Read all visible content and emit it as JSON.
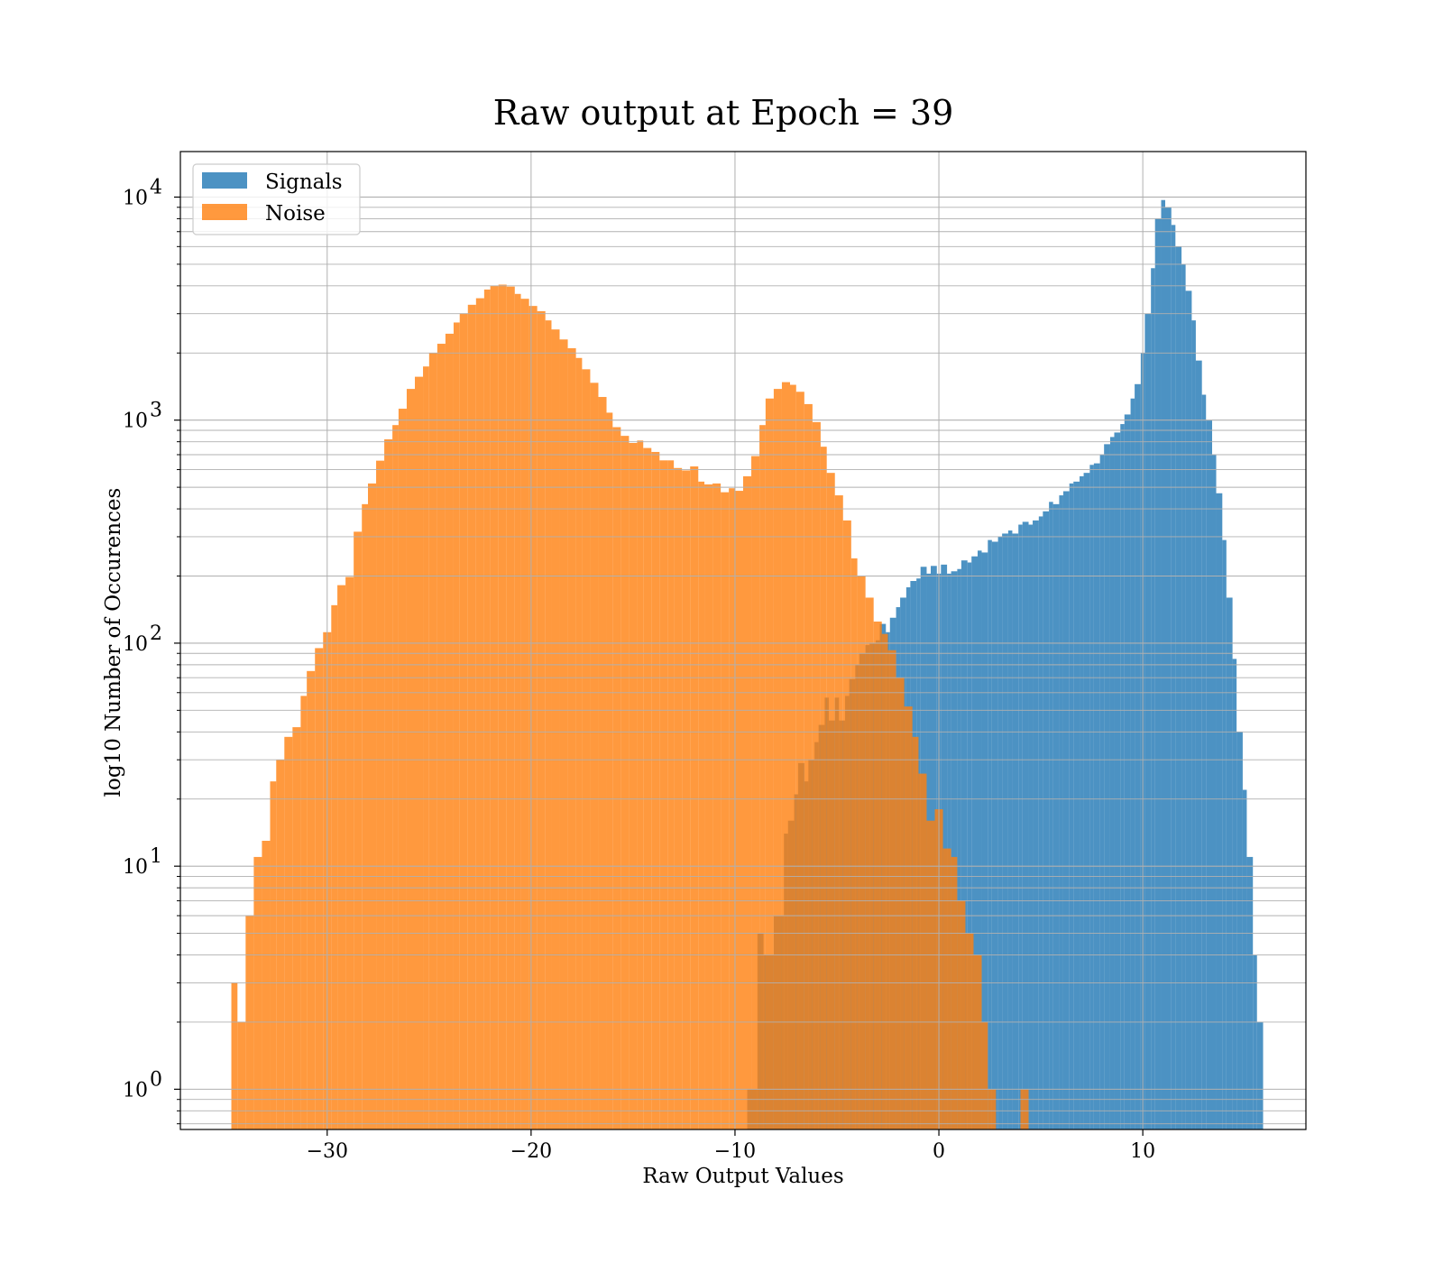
{
  "chart_data": {
    "type": "histogram",
    "title": "Raw output at Epoch = 39",
    "xlabel": "Raw Output Values",
    "ylabel": "log10 Number of Occurences",
    "xlim": [
      -37.2,
      18
    ],
    "ylim": [
      0.66,
      16000
    ],
    "yscale": "log",
    "xticks": [
      -30,
      -20,
      -10,
      0,
      10
    ],
    "xtick_labels": [
      "−30",
      "−20",
      "−10",
      "0",
      "10"
    ],
    "yticks": [
      {
        "value": 1,
        "base": "10",
        "exp": "0"
      },
      {
        "value": 10,
        "base": "10",
        "exp": "1"
      },
      {
        "value": 100,
        "base": "10",
        "exp": "2"
      },
      {
        "value": 1000,
        "base": "10",
        "exp": "3"
      },
      {
        "value": 10000,
        "base": "10",
        "exp": "4"
      }
    ],
    "grid": true,
    "legend_position": "upper left",
    "series": [
      {
        "name": "Signals",
        "color": "#1f77b4",
        "alpha": 0.8,
        "bins": [
          [
            -9.4,
            -8.9,
            1
          ],
          [
            -8.9,
            -8.6,
            5
          ],
          [
            -8.6,
            -8.1,
            4
          ],
          [
            -8.1,
            -7.6,
            6
          ],
          [
            -7.6,
            -7.4,
            14
          ],
          [
            -7.4,
            -7.1,
            16
          ],
          [
            -7.1,
            -6.9,
            21
          ],
          [
            -6.9,
            -6.6,
            29
          ],
          [
            -6.6,
            -6.4,
            24
          ],
          [
            -6.4,
            -6.1,
            30
          ],
          [
            -6.1,
            -5.9,
            36
          ],
          [
            -5.9,
            -5.6,
            43
          ],
          [
            -5.6,
            -5.4,
            57
          ],
          [
            -5.4,
            -5.1,
            45
          ],
          [
            -5.1,
            -4.9,
            57
          ],
          [
            -4.9,
            -4.6,
            45
          ],
          [
            -4.6,
            -4.4,
            58
          ],
          [
            -4.4,
            -4.1,
            69
          ],
          [
            -4.1,
            -3.9,
            80
          ],
          [
            -3.9,
            -3.6,
            90
          ],
          [
            -3.6,
            -3.4,
            98
          ],
          [
            -3.4,
            -3.1,
            100
          ],
          [
            -3.1,
            -2.9,
            103
          ],
          [
            -2.9,
            -2.6,
            122
          ],
          [
            -2.6,
            -2.4,
            112
          ],
          [
            -2.4,
            -2.1,
            130
          ],
          [
            -2.1,
            -1.9,
            145
          ],
          [
            -1.9,
            -1.6,
            160
          ],
          [
            -1.6,
            -1.4,
            178
          ],
          [
            -1.4,
            -1.1,
            190
          ],
          [
            -1.1,
            -0.9,
            195
          ],
          [
            -0.9,
            -0.6,
            220
          ],
          [
            -0.6,
            -0.4,
            205
          ],
          [
            -0.4,
            -0.1,
            222
          ],
          [
            -0.1,
            0.1,
            205
          ],
          [
            0.1,
            0.4,
            225
          ],
          [
            0.4,
            0.6,
            205
          ],
          [
            0.6,
            0.9,
            210
          ],
          [
            0.9,
            1.1,
            215
          ],
          [
            1.1,
            1.4,
            235
          ],
          [
            1.4,
            1.6,
            230
          ],
          [
            1.6,
            1.9,
            245
          ],
          [
            1.9,
            2.1,
            260
          ],
          [
            2.1,
            2.4,
            255
          ],
          [
            2.4,
            2.6,
            290
          ],
          [
            2.6,
            2.9,
            285
          ],
          [
            2.9,
            3.1,
            300
          ],
          [
            3.1,
            3.4,
            310
          ],
          [
            3.4,
            3.6,
            320
          ],
          [
            3.6,
            3.9,
            310
          ],
          [
            3.9,
            4.1,
            340
          ],
          [
            4.1,
            4.4,
            350
          ],
          [
            4.4,
            4.6,
            340
          ],
          [
            4.6,
            4.9,
            355
          ],
          [
            4.9,
            5.1,
            370
          ],
          [
            5.1,
            5.4,
            390
          ],
          [
            5.4,
            5.6,
            430
          ],
          [
            5.6,
            5.9,
            420
          ],
          [
            5.9,
            6.1,
            460
          ],
          [
            6.1,
            6.4,
            480
          ],
          [
            6.4,
            6.6,
            520
          ],
          [
            6.6,
            6.9,
            530
          ],
          [
            6.9,
            7.1,
            560
          ],
          [
            7.1,
            7.4,
            580
          ],
          [
            7.4,
            7.6,
            630
          ],
          [
            7.6,
            7.9,
            640
          ],
          [
            7.9,
            8.1,
            700
          ],
          [
            8.1,
            8.4,
            780
          ],
          [
            8.4,
            8.6,
            840
          ],
          [
            8.6,
            8.9,
            880
          ],
          [
            8.9,
            9.1,
            960
          ],
          [
            9.1,
            9.4,
            1060
          ],
          [
            9.4,
            9.6,
            1250
          ],
          [
            9.6,
            9.9,
            1450
          ],
          [
            9.9,
            10.1,
            2000
          ],
          [
            10.1,
            10.4,
            3000
          ],
          [
            10.4,
            10.6,
            4800
          ],
          [
            10.6,
            10.9,
            8000
          ],
          [
            10.9,
            11.1,
            9700
          ],
          [
            11.1,
            11.4,
            9000
          ],
          [
            11.4,
            11.6,
            7500
          ],
          [
            11.6,
            11.9,
            6000
          ],
          [
            11.9,
            12.1,
            5000
          ],
          [
            12.1,
            12.4,
            3800
          ],
          [
            12.4,
            12.6,
            2800
          ],
          [
            12.6,
            12.9,
            1850
          ],
          [
            12.9,
            13.1,
            1300
          ],
          [
            13.1,
            13.4,
            1000
          ],
          [
            13.4,
            13.6,
            700
          ],
          [
            13.6,
            13.9,
            470
          ],
          [
            13.9,
            14.1,
            290
          ],
          [
            14.1,
            14.4,
            160
          ],
          [
            14.4,
            14.6,
            85
          ],
          [
            14.6,
            14.9,
            40
          ],
          [
            14.9,
            15.1,
            22
          ],
          [
            15.1,
            15.4,
            11
          ],
          [
            15.4,
            15.6,
            4
          ],
          [
            15.6,
            15.9,
            2
          ]
        ]
      },
      {
        "name": "Noise",
        "color": "#ff7f0e",
        "alpha": 0.8,
        "bins": [
          [
            -34.7,
            -34.4,
            3
          ],
          [
            -34.4,
            -34.0,
            2
          ],
          [
            -34.0,
            -33.6,
            6
          ],
          [
            -33.6,
            -33.2,
            11
          ],
          [
            -33.2,
            -32.8,
            13
          ],
          [
            -32.8,
            -32.5,
            24
          ],
          [
            -32.5,
            -32.1,
            30
          ],
          [
            -32.1,
            -31.7,
            38
          ],
          [
            -31.7,
            -31.3,
            42
          ],
          [
            -31.3,
            -31.0,
            58
          ],
          [
            -31.0,
            -30.6,
            75
          ],
          [
            -30.6,
            -30.2,
            95
          ],
          [
            -30.2,
            -29.8,
            112
          ],
          [
            -29.8,
            -29.5,
            148
          ],
          [
            -29.5,
            -29.1,
            182
          ],
          [
            -29.1,
            -28.7,
            198
          ],
          [
            -28.7,
            -28.3,
            316
          ],
          [
            -28.3,
            -28.0,
            420
          ],
          [
            -28.0,
            -27.6,
            520
          ],
          [
            -27.6,
            -27.2,
            658
          ],
          [
            -27.2,
            -26.8,
            820
          ],
          [
            -26.8,
            -26.5,
            950
          ],
          [
            -26.5,
            -26.1,
            1125
          ],
          [
            -26.1,
            -25.7,
            1380
          ],
          [
            -25.7,
            -25.3,
            1565
          ],
          [
            -25.3,
            -25.0,
            1740
          ],
          [
            -25.0,
            -24.6,
            2000
          ],
          [
            -24.6,
            -24.2,
            2200
          ],
          [
            -24.2,
            -23.8,
            2440
          ],
          [
            -23.8,
            -23.5,
            2740
          ],
          [
            -23.5,
            -23.1,
            3010
          ],
          [
            -23.1,
            -22.7,
            3290
          ],
          [
            -22.7,
            -22.3,
            3520
          ],
          [
            -22.3,
            -22.0,
            3850
          ],
          [
            -22.0,
            -21.6,
            4000
          ],
          [
            -21.6,
            -21.2,
            4050
          ],
          [
            -21.2,
            -20.8,
            3970
          ],
          [
            -20.8,
            -20.5,
            3680
          ],
          [
            -20.5,
            -20.1,
            3500
          ],
          [
            -20.1,
            -19.7,
            3250
          ],
          [
            -19.7,
            -19.3,
            3080
          ],
          [
            -19.3,
            -19.0,
            2800
          ],
          [
            -19.0,
            -18.6,
            2550
          ],
          [
            -18.6,
            -18.2,
            2300
          ],
          [
            -18.2,
            -17.8,
            2100
          ],
          [
            -17.8,
            -17.5,
            1900
          ],
          [
            -17.5,
            -17.1,
            1690
          ],
          [
            -17.1,
            -16.7,
            1470
          ],
          [
            -16.7,
            -16.3,
            1270
          ],
          [
            -16.3,
            -16.0,
            1080
          ],
          [
            -16.0,
            -15.6,
            930
          ],
          [
            -15.6,
            -15.2,
            850
          ],
          [
            -15.2,
            -14.8,
            790
          ],
          [
            -14.8,
            -14.5,
            810
          ],
          [
            -14.5,
            -14.1,
            750
          ],
          [
            -14.1,
            -13.7,
            720
          ],
          [
            -13.7,
            -13.3,
            660
          ],
          [
            -13.3,
            -13.0,
            660
          ],
          [
            -13.0,
            -12.6,
            610
          ],
          [
            -12.6,
            -12.2,
            595
          ],
          [
            -12.2,
            -11.8,
            620
          ],
          [
            -11.8,
            -11.5,
            530
          ],
          [
            -11.5,
            -11.1,
            515
          ],
          [
            -11.1,
            -10.7,
            520
          ],
          [
            -10.7,
            -10.3,
            475
          ],
          [
            -10.3,
            -10.0,
            495
          ],
          [
            -10.0,
            -9.6,
            482
          ],
          [
            -9.6,
            -9.2,
            560
          ],
          [
            -9.2,
            -8.8,
            690
          ],
          [
            -8.8,
            -8.5,
            950
          ],
          [
            -8.5,
            -8.1,
            1250
          ],
          [
            -8.1,
            -7.7,
            1380
          ],
          [
            -7.7,
            -7.3,
            1480
          ],
          [
            -7.3,
            -7.0,
            1440
          ],
          [
            -7.0,
            -6.6,
            1340
          ],
          [
            -6.6,
            -6.2,
            1180
          ],
          [
            -6.2,
            -5.8,
            980
          ],
          [
            -5.8,
            -5.5,
            760
          ],
          [
            -5.5,
            -5.1,
            580
          ],
          [
            -5.1,
            -4.7,
            460
          ],
          [
            -4.7,
            -4.3,
            355
          ],
          [
            -4.3,
            -4.0,
            240
          ],
          [
            -4.0,
            -3.6,
            200
          ],
          [
            -3.6,
            -3.2,
            160
          ],
          [
            -3.2,
            -2.8,
            125
          ],
          [
            -2.8,
            -2.5,
            110
          ],
          [
            -2.5,
            -2.1,
            93
          ],
          [
            -2.1,
            -1.7,
            70
          ],
          [
            -1.7,
            -1.3,
            52
          ],
          [
            -1.3,
            -1.0,
            38
          ],
          [
            -1.0,
            -0.6,
            26
          ],
          [
            -0.6,
            -0.2,
            16
          ],
          [
            -0.2,
            0.2,
            18
          ],
          [
            0.2,
            0.6,
            12
          ],
          [
            0.6,
            0.9,
            11
          ],
          [
            0.9,
            1.3,
            7
          ],
          [
            1.3,
            1.7,
            5
          ],
          [
            1.7,
            2.1,
            4
          ],
          [
            2.1,
            2.4,
            2
          ],
          [
            2.4,
            2.8,
            1
          ],
          [
            4.0,
            4.4,
            1
          ]
        ]
      }
    ]
  }
}
